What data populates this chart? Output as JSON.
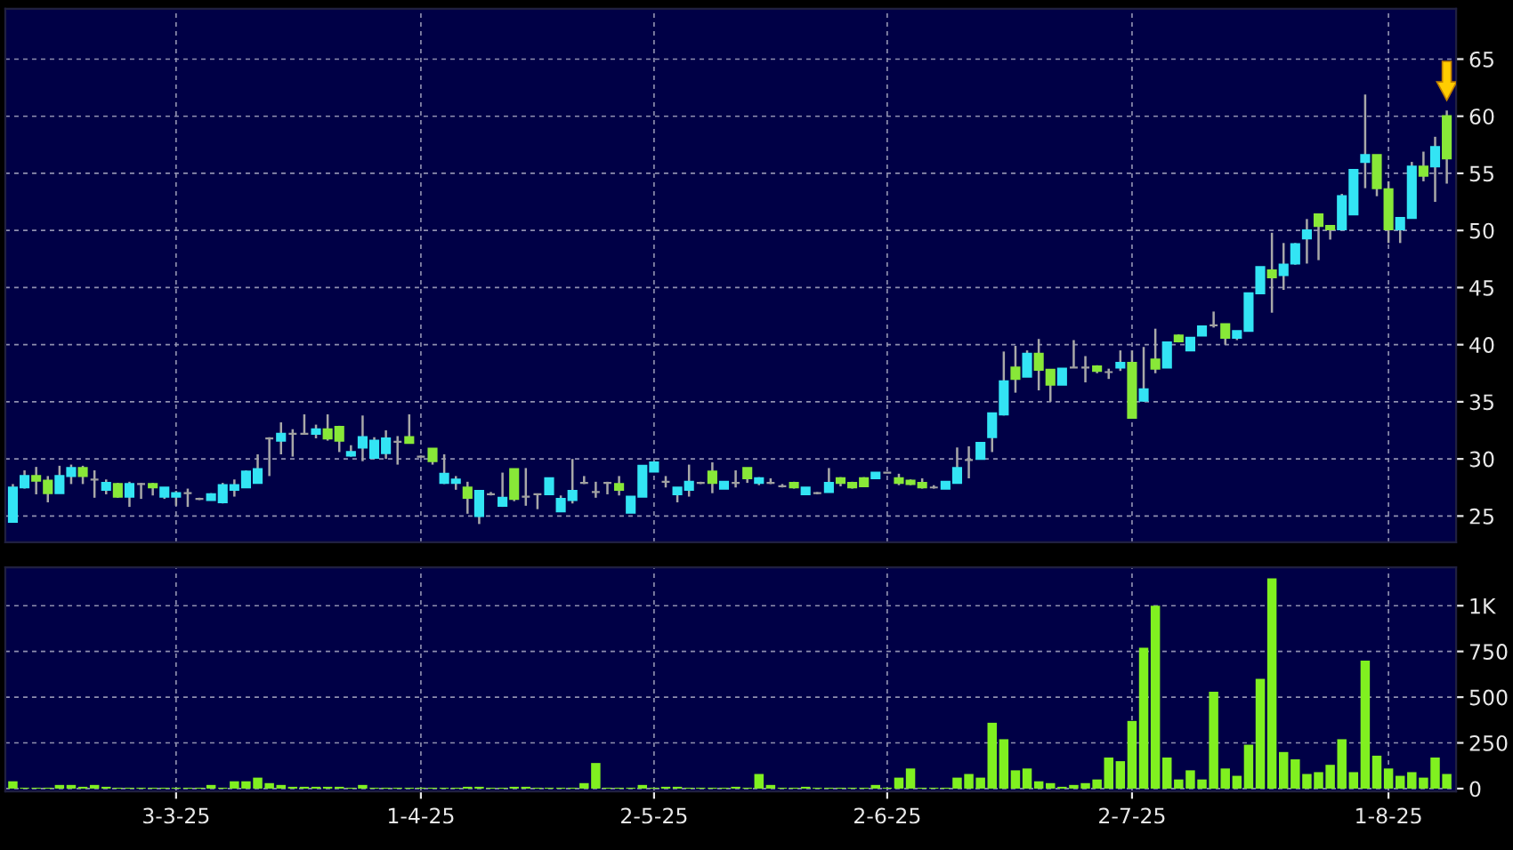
{
  "chart_data": [
    {
      "type": "candlestick",
      "categories": [
        null,
        null,
        null,
        null,
        null,
        null,
        null,
        null,
        null,
        null,
        null,
        null,
        null,
        null,
        null,
        null,
        null,
        null,
        null,
        null,
        null,
        null,
        null,
        null,
        null,
        null,
        null,
        null,
        null,
        null,
        null,
        null,
        null,
        null,
        null,
        null,
        null,
        null,
        null,
        null,
        null,
        null,
        null,
        null,
        null,
        null,
        null,
        null,
        null,
        null,
        null,
        null,
        null,
        null,
        null,
        null,
        null,
        null,
        null,
        null,
        null,
        null,
        null,
        null,
        null,
        null,
        null,
        null,
        null,
        null,
        null,
        null,
        null,
        null,
        null,
        null,
        null,
        null,
        null,
        null,
        null,
        null,
        null,
        null,
        null,
        null,
        null,
        null,
        null,
        null,
        null,
        null,
        null,
        null,
        null,
        null,
        null,
        null,
        null,
        null,
        null,
        null,
        null,
        null,
        null,
        null,
        null,
        null,
        null,
        null,
        null,
        null,
        null,
        null,
        null,
        null,
        null,
        null,
        null,
        null,
        null,
        null,
        null,
        null
      ],
      "ohlc": [
        [
          24.5,
          27.8,
          24.5,
          27.5
        ],
        [
          27.5,
          29.0,
          27.4,
          28.5
        ],
        [
          28.5,
          29.3,
          26.9,
          28.1
        ],
        [
          28.1,
          28.5,
          26.2,
          27.0
        ],
        [
          27.0,
          29.4,
          27.0,
          28.5
        ],
        [
          28.5,
          29.5,
          27.8,
          29.2
        ],
        [
          29.2,
          29.4,
          27.8,
          28.5
        ],
        [
          28.2,
          29.0,
          26.6,
          28.2
        ],
        [
          27.3,
          28.2,
          26.9,
          27.9
        ],
        [
          27.8,
          27.9,
          26.6,
          26.7
        ],
        [
          26.7,
          28.0,
          25.8,
          27.8
        ],
        [
          27.8,
          27.9,
          26.5,
          27.8
        ],
        [
          27.8,
          27.9,
          26.8,
          27.5
        ],
        [
          26.7,
          27.5,
          26.5,
          27.5
        ],
        [
          26.7,
          27.2,
          25.9,
          27.0
        ],
        [
          27.0,
          27.4,
          25.8,
          27.0
        ],
        [
          26.5,
          26.6,
          26.4,
          26.5
        ],
        [
          26.4,
          27.0,
          26.4,
          26.9
        ],
        [
          26.2,
          27.9,
          26.1,
          27.7
        ],
        [
          27.3,
          28.2,
          26.7,
          27.7
        ],
        [
          27.5,
          29.0,
          27.5,
          28.9
        ],
        [
          27.9,
          30.4,
          27.9,
          29.1
        ],
        [
          31.8,
          31.9,
          28.5,
          31.8
        ],
        [
          31.6,
          33.2,
          30.4,
          32.2
        ],
        [
          32.2,
          32.6,
          30.2,
          32.2
        ],
        [
          32.2,
          33.9,
          32.2,
          32.2
        ],
        [
          32.2,
          33.0,
          31.8,
          32.6
        ],
        [
          32.6,
          33.9,
          31.6,
          31.8
        ],
        [
          32.8,
          32.9,
          30.6,
          31.6
        ],
        [
          30.3,
          31.2,
          30.2,
          30.6
        ],
        [
          31.0,
          33.8,
          29.8,
          31.9
        ],
        [
          30.1,
          31.9,
          30.0,
          31.6
        ],
        [
          30.5,
          32.5,
          30.0,
          31.8
        ],
        [
          31.5,
          32.0,
          29.5,
          31.5
        ],
        [
          31.9,
          33.9,
          31.4,
          31.4
        ],
        [
          30.2,
          30.3,
          30.1,
          30.2
        ],
        [
          30.9,
          30.9,
          29.5,
          29.8
        ],
        [
          27.9,
          30.4,
          27.8,
          28.7
        ],
        [
          27.9,
          28.5,
          27.3,
          28.2
        ],
        [
          27.5,
          28.0,
          25.2,
          26.6
        ],
        [
          25.0,
          27.2,
          24.3,
          27.2
        ],
        [
          26.9,
          27.1,
          26.8,
          26.9
        ],
        [
          25.9,
          28.8,
          25.8,
          26.6
        ],
        [
          29.1,
          29.1,
          26.3,
          26.5
        ],
        [
          26.7,
          29.2,
          25.9,
          26.7
        ],
        [
          26.9,
          26.9,
          25.6,
          26.9
        ],
        [
          26.9,
          28.3,
          26.9,
          28.3
        ],
        [
          25.4,
          26.8,
          25.4,
          26.5
        ],
        [
          26.4,
          30.0,
          26.1,
          27.2
        ],
        [
          27.9,
          28.5,
          27.8,
          27.9
        ],
        [
          27.1,
          28.0,
          26.6,
          27.1
        ],
        [
          27.9,
          28.0,
          26.9,
          27.9
        ],
        [
          27.8,
          28.5,
          26.8,
          27.3
        ],
        [
          25.3,
          26.7,
          25.3,
          26.7
        ],
        [
          26.7,
          29.4,
          26.7,
          29.4
        ],
        [
          28.9,
          29.8,
          28.9,
          29.7
        ],
        [
          28.0,
          28.5,
          27.5,
          28.0
        ],
        [
          26.9,
          27.5,
          26.2,
          27.5
        ],
        [
          27.3,
          29.5,
          26.7,
          28.0
        ],
        [
          27.9,
          28.0,
          27.8,
          27.9
        ],
        [
          28.9,
          29.7,
          27.0,
          27.9
        ],
        [
          27.4,
          28.0,
          27.4,
          28.0
        ],
        [
          27.9,
          29.0,
          27.5,
          27.9
        ],
        [
          29.2,
          29.2,
          27.9,
          28.3
        ],
        [
          27.9,
          28.4,
          27.7,
          28.3
        ],
        [
          27.9,
          28.3,
          27.8,
          27.9
        ],
        [
          27.6,
          27.8,
          27.5,
          27.6
        ],
        [
          27.9,
          28.0,
          27.4,
          27.5
        ],
        [
          26.9,
          27.5,
          26.9,
          27.5
        ],
        [
          27.0,
          27.1,
          26.9,
          27.0
        ],
        [
          27.1,
          29.2,
          27.1,
          27.9
        ],
        [
          28.3,
          28.4,
          27.6,
          27.9
        ],
        [
          27.9,
          28.0,
          27.4,
          27.5
        ],
        [
          28.3,
          28.4,
          27.6,
          27.6
        ],
        [
          28.3,
          28.8,
          28.3,
          28.8
        ],
        [
          28.8,
          28.8,
          28.8,
          28.8
        ],
        [
          28.3,
          28.7,
          27.7,
          27.9
        ],
        [
          28.1,
          28.2,
          27.7,
          27.8
        ],
        [
          27.9,
          28.3,
          27.4,
          27.5
        ],
        [
          27.5,
          27.7,
          27.4,
          27.5
        ],
        [
          27.4,
          28.0,
          27.4,
          28.0
        ],
        [
          27.9,
          31.0,
          27.9,
          29.2
        ],
        [
          29.9,
          31.1,
          28.3,
          29.9
        ],
        [
          30.0,
          31.4,
          30.0,
          31.4
        ],
        [
          31.9,
          34.0,
          30.6,
          34.0
        ],
        [
          33.9,
          39.4,
          33.8,
          36.8
        ],
        [
          38.0,
          39.9,
          35.8,
          37.0
        ],
        [
          37.2,
          39.5,
          37.2,
          39.2
        ],
        [
          39.2,
          40.5,
          36.0,
          37.8
        ],
        [
          37.8,
          37.8,
          35.0,
          36.5
        ],
        [
          36.5,
          37.9,
          36.5,
          37.9
        ],
        [
          38.0,
          40.4,
          38.0,
          38.0
        ],
        [
          38.0,
          39.0,
          36.7,
          38.0
        ],
        [
          38.1,
          38.2,
          37.5,
          37.7
        ],
        [
          37.6,
          37.9,
          37.0,
          37.6
        ],
        [
          38.0,
          39.5,
          37.7,
          38.4
        ],
        [
          38.4,
          39.5,
          33.6,
          33.6
        ],
        [
          35.1,
          39.8,
          35.0,
          36.1
        ],
        [
          38.7,
          41.4,
          37.5,
          37.9
        ],
        [
          38.0,
          40.2,
          38.0,
          40.2
        ],
        [
          40.8,
          40.9,
          40.2,
          40.3
        ],
        [
          39.5,
          40.6,
          39.5,
          40.6
        ],
        [
          40.8,
          41.6,
          40.8,
          41.6
        ],
        [
          41.7,
          42.9,
          41.5,
          41.7
        ],
        [
          41.8,
          41.8,
          40.0,
          40.6
        ],
        [
          40.6,
          41.2,
          40.4,
          41.2
        ],
        [
          41.2,
          44.5,
          41.2,
          44.5
        ],
        [
          44.5,
          46.8,
          44.5,
          46.8
        ],
        [
          46.5,
          49.8,
          42.8,
          45.9
        ],
        [
          46.1,
          48.9,
          44.8,
          47.0
        ],
        [
          47.1,
          48.9,
          47.0,
          48.8
        ],
        [
          49.3,
          51.0,
          47.1,
          50.0
        ],
        [
          51.4,
          51.4,
          47.4,
          50.4
        ],
        [
          50.4,
          50.4,
          49.2,
          50.1
        ],
        [
          50.1,
          53.2,
          50.1,
          53.0
        ],
        [
          51.4,
          55.3,
          51.4,
          55.3
        ],
        [
          56.0,
          61.9,
          53.7,
          56.6
        ],
        [
          56.6,
          56.6,
          53.0,
          53.7
        ],
        [
          53.6,
          54.3,
          48.9,
          50.1
        ],
        [
          50.1,
          51.1,
          48.9,
          51.1
        ],
        [
          51.1,
          56.0,
          51.1,
          55.6
        ],
        [
          55.6,
          56.9,
          54.3,
          54.8
        ],
        [
          55.6,
          58.2,
          52.5,
          57.3
        ],
        [
          60.0,
          60.5,
          54.1,
          56.3
        ]
      ],
      "colors": [
        "#33e4f4",
        "#33e4f4",
        "#88e838",
        "#88e838",
        "#33e4f4",
        "#33e4f4",
        "#88e838",
        "#a0a0a0",
        "#33e4f4",
        "#88e838",
        "#33e4f4",
        "#a0a0a0",
        "#88e838",
        "#33e4f4",
        "#33e4f4",
        "#a0a0a0",
        "#a0a0a0",
        "#33e4f4",
        "#33e4f4",
        "#33e4f4",
        "#33e4f4",
        "#33e4f4",
        "#a0a0a0",
        "#33e4f4",
        "#a0a0a0",
        "#a0a0a0",
        "#33e4f4",
        "#88e838",
        "#88e838",
        "#33e4f4",
        "#33e4f4",
        "#33e4f4",
        "#33e4f4",
        "#a0a0a0",
        "#88e838",
        "#a0a0a0",
        "#88e838",
        "#33e4f4",
        "#33e4f4",
        "#88e838",
        "#33e4f4",
        "#a0a0a0",
        "#33e4f4",
        "#88e838",
        "#a0a0a0",
        "#a0a0a0",
        "#33e4f4",
        "#33e4f4",
        "#33e4f4",
        "#a0a0a0",
        "#a0a0a0",
        "#a0a0a0",
        "#88e838",
        "#33e4f4",
        "#33e4f4",
        "#33e4f4",
        "#a0a0a0",
        "#33e4f4",
        "#33e4f4",
        "#a0a0a0",
        "#88e838",
        "#33e4f4",
        "#a0a0a0",
        "#88e838",
        "#33e4f4",
        "#a0a0a0",
        "#a0a0a0",
        "#88e838",
        "#33e4f4",
        "#a0a0a0",
        "#33e4f4",
        "#88e838",
        "#88e838",
        "#88e838",
        "#33e4f4",
        "#a0a0a0",
        "#88e838",
        "#88e838",
        "#88e838",
        "#a0a0a0",
        "#33e4f4",
        "#33e4f4",
        "#a0a0a0",
        "#33e4f4",
        "#33e4f4",
        "#33e4f4",
        "#88e838",
        "#33e4f4",
        "#88e838",
        "#88e838",
        "#33e4f4",
        "#a0a0a0",
        "#a0a0a0",
        "#88e838",
        "#a0a0a0",
        "#33e4f4",
        "#88e838",
        "#33e4f4",
        "#88e838",
        "#33e4f4",
        "#88e838",
        "#33e4f4",
        "#33e4f4",
        "#a0a0a0",
        "#88e838",
        "#33e4f4",
        "#33e4f4",
        "#33e4f4",
        "#88e838",
        "#33e4f4",
        "#33e4f4",
        "#33e4f4",
        "#88e838",
        "#88e838",
        "#33e4f4",
        "#33e4f4",
        "#33e4f4",
        "#88e838",
        "#88e838",
        "#33e4f4",
        "#33e4f4",
        "#88e838",
        "#33e4f4",
        "#88e838"
      ],
      "ylim": [
        22.7,
        69.4
      ],
      "yticks": [
        25,
        30,
        35,
        40,
        45,
        50,
        55,
        60,
        65
      ],
      "grid": true,
      "tick_labels": "y"
    },
    {
      "type": "bar",
      "categories": [
        null,
        null,
        null,
        null,
        null,
        null,
        null,
        null,
        null,
        null,
        null,
        null,
        null,
        null,
        "3-3-25",
        null,
        null,
        null,
        null,
        null,
        null,
        null,
        null,
        null,
        null,
        null,
        null,
        null,
        null,
        null,
        null,
        null,
        null,
        null,
        null,
        "1-4-25",
        null,
        null,
        null,
        null,
        null,
        null,
        null,
        null,
        null,
        null,
        null,
        null,
        null,
        null,
        null,
        null,
        null,
        null,
        null,
        "2-5-25",
        null,
        null,
        null,
        null,
        null,
        null,
        null,
        null,
        null,
        null,
        null,
        null,
        null,
        null,
        null,
        null,
        null,
        null,
        null,
        "2-6-25",
        null,
        null,
        null,
        null,
        null,
        null,
        null,
        null,
        null,
        null,
        null,
        null,
        null,
        null,
        null,
        null,
        null,
        null,
        null,
        null,
        "2-7-25",
        null,
        null,
        null,
        null,
        null,
        null,
        null,
        null,
        null,
        null,
        null,
        null,
        null,
        null,
        null,
        null,
        null,
        null,
        null,
        null,
        null,
        "1-8-25",
        null,
        null,
        null,
        null,
        null
      ],
      "values": [
        40,
        5,
        5,
        5,
        20,
        20,
        10,
        20,
        10,
        5,
        5,
        5,
        5,
        5,
        5,
        5,
        5,
        20,
        5,
        40,
        40,
        60,
        30,
        20,
        10,
        10,
        10,
        10,
        10,
        5,
        20,
        5,
        5,
        5,
        5,
        5,
        5,
        5,
        5,
        10,
        10,
        5,
        5,
        10,
        10,
        5,
        5,
        5,
        5,
        30,
        140,
        5,
        5,
        5,
        20,
        5,
        10,
        10,
        5,
        5,
        5,
        5,
        10,
        5,
        80,
        20,
        5,
        5,
        10,
        5,
        5,
        5,
        5,
        5,
        20,
        5,
        60,
        110,
        5,
        5,
        5,
        60,
        80,
        60,
        360,
        270,
        100,
        110,
        40,
        30,
        10,
        20,
        30,
        50,
        170,
        150,
        370,
        770,
        1000,
        170,
        50,
        100,
        50,
        530,
        110,
        70,
        240,
        600,
        1150,
        200,
        160,
        80,
        90,
        130,
        270,
        90,
        700,
        180,
        110,
        70,
        90,
        60,
        170,
        80
      ],
      "color": "#80f020",
      "ylim": [
        -15,
        1210
      ],
      "yticks": [
        0,
        250,
        500,
        750,
        {
          "value": 1000,
          "label": "1K"
        }
      ],
      "grid": true
    }
  ]
}
